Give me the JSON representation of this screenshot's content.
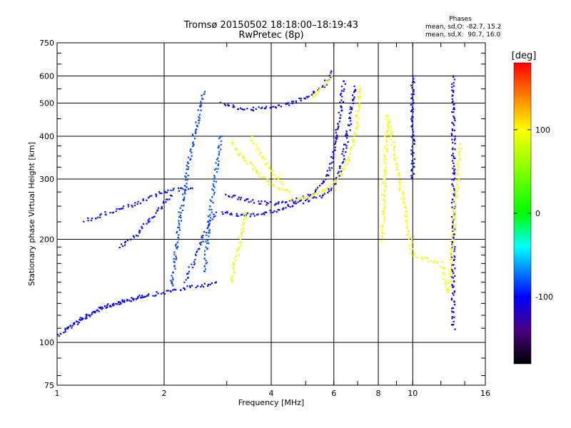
{
  "chart_data": {
    "type": "scatter",
    "title": "Tromsø 20150502 18:18:00–18:19:43",
    "subtitle": "RwPretec (8p)",
    "xlabel": "Frequency [MHz]",
    "ylabel": "Stationary phase Virtual Height [km]",
    "x_scale": "log",
    "y_scale": "log",
    "xlim": [
      1,
      16
    ],
    "ylim": [
      75,
      750
    ],
    "x_ticks": [
      1,
      2,
      4,
      6,
      8,
      10,
      16
    ],
    "x_tick_labels": [
      "1",
      "2",
      "4",
      "6",
      "8",
      "10",
      "16"
    ],
    "y_ticks": [
      75,
      100,
      200,
      300,
      400,
      500,
      600,
      750
    ],
    "y_tick_labels": [
      "75",
      "100",
      "200",
      "300",
      "400",
      "500",
      "600",
      "750"
    ],
    "grid": true,
    "colorbar": {
      "label": "[deg]",
      "range": [
        -180,
        180
      ],
      "ticks": [
        100,
        0,
        -100
      ],
      "tick_labels": [
        "100",
        "0",
        "-100"
      ],
      "colors": [
        "#000000",
        "#4a0080",
        "#0000ff",
        "#00ffff",
        "#00ff00",
        "#ffff00",
        "#ff8000",
        "#ff0000"
      ]
    },
    "phase_stats": {
      "title": "Phases",
      "o_mode": "mean, sd,O: -82.7, 15.2",
      "x_mode": "mean, sd,X:  90.7, 16.0"
    },
    "traces": [
      {
        "phase": -100,
        "points": [
          [
            1.0,
            105
          ],
          [
            1.1,
            112
          ],
          [
            1.2,
            118
          ],
          [
            1.3,
            124
          ],
          [
            1.4,
            128
          ],
          [
            1.55,
            132
          ],
          [
            1.7,
            136
          ],
          [
            1.85,
            138
          ],
          [
            2.0,
            140
          ],
          [
            2.2,
            143
          ],
          [
            2.5,
            146
          ],
          [
            2.8,
            150
          ]
        ]
      },
      {
        "phase": -105,
        "points": [
          [
            1.05,
            108
          ],
          [
            1.12,
            114
          ],
          [
            1.22,
            121
          ],
          [
            1.35,
            127
          ],
          [
            1.5,
            131
          ],
          [
            1.65,
            134
          ],
          [
            1.8,
            137
          ]
        ]
      },
      {
        "phase": -95,
        "points": [
          [
            1.2,
            228
          ],
          [
            1.3,
            232
          ],
          [
            1.4,
            240
          ],
          [
            1.55,
            248
          ],
          [
            1.7,
            256
          ],
          [
            1.8,
            262
          ],
          [
            1.9,
            270
          ],
          [
            2.0,
            275
          ],
          [
            2.2,
            280
          ],
          [
            2.4,
            282
          ]
        ]
      },
      {
        "phase": -98,
        "points": [
          [
            1.5,
            190
          ],
          [
            1.6,
            200
          ],
          [
            1.7,
            210
          ],
          [
            1.8,
            225
          ],
          [
            1.9,
            240
          ],
          [
            2.0,
            255
          ],
          [
            2.1,
            268
          ]
        ]
      },
      {
        "phase": -85,
        "points": [
          [
            2.1,
            145
          ],
          [
            2.15,
            180
          ],
          [
            2.2,
            220
          ],
          [
            2.25,
            260
          ],
          [
            2.3,
            300
          ],
          [
            2.35,
            340
          ],
          [
            2.4,
            380
          ],
          [
            2.45,
            420
          ],
          [
            2.5,
            460
          ],
          [
            2.55,
            500
          ],
          [
            2.6,
            540
          ]
        ]
      },
      {
        "phase": -80,
        "points": [
          [
            2.6,
            160
          ],
          [
            2.65,
            200
          ],
          [
            2.7,
            240
          ],
          [
            2.75,
            280
          ],
          [
            2.8,
            320
          ],
          [
            2.85,
            360
          ],
          [
            2.9,
            400
          ]
        ]
      },
      {
        "phase": -90,
        "points": [
          [
            2.3,
            150
          ],
          [
            2.4,
            170
          ],
          [
            2.5,
            190
          ],
          [
            2.6,
            210
          ],
          [
            2.7,
            225
          ],
          [
            2.8,
            240
          ]
        ]
      },
      {
        "phase": -100,
        "points": [
          [
            2.9,
            240
          ],
          [
            3.2,
            236
          ],
          [
            3.6,
            236
          ],
          [
            4.0,
            240
          ],
          [
            4.4,
            248
          ],
          [
            4.8,
            256
          ],
          [
            5.2,
            262
          ],
          [
            5.6,
            270
          ],
          [
            5.9,
            280
          ],
          [
            6.1,
            300
          ],
          [
            6.3,
            330
          ],
          [
            6.45,
            370
          ],
          [
            6.6,
            420
          ],
          [
            6.7,
            470
          ],
          [
            6.8,
            520
          ],
          [
            6.85,
            560
          ]
        ]
      },
      {
        "phase": -105,
        "points": [
          [
            3.0,
            270
          ],
          [
            3.3,
            262
          ],
          [
            3.7,
            256
          ],
          [
            4.1,
            254
          ],
          [
            4.6,
            258
          ],
          [
            5.0,
            266
          ],
          [
            5.4,
            280
          ],
          [
            5.7,
            300
          ],
          [
            5.9,
            330
          ],
          [
            6.0,
            370
          ],
          [
            6.1,
            410
          ],
          [
            6.2,
            450
          ],
          [
            6.3,
            500
          ],
          [
            6.35,
            540
          ],
          [
            6.4,
            580
          ]
        ]
      },
      {
        "phase": 95,
        "points": [
          [
            4.5,
            262
          ],
          [
            4.9,
            264
          ],
          [
            5.3,
            270
          ],
          [
            5.7,
            280
          ],
          [
            6.1,
            296
          ],
          [
            6.4,
            320
          ],
          [
            6.65,
            350
          ],
          [
            6.85,
            390
          ],
          [
            6.95,
            430
          ],
          [
            7.0,
            470
          ],
          [
            7.05,
            510
          ],
          [
            7.1,
            560
          ]
        ]
      },
      {
        "phase": 90,
        "points": [
          [
            3.1,
            380
          ],
          [
            3.3,
            350
          ],
          [
            3.5,
            330
          ],
          [
            3.7,
            310
          ],
          [
            3.9,
            296
          ],
          [
            4.1,
            286
          ],
          [
            4.3,
            280
          ],
          [
            4.5,
            276
          ]
        ]
      },
      {
        "phase": 100,
        "points": [
          [
            3.5,
            395
          ],
          [
            3.7,
            360
          ],
          [
            3.9,
            330
          ],
          [
            4.1,
            305
          ],
          [
            4.3,
            290
          ]
        ]
      },
      {
        "phase": 90,
        "points": [
          [
            3.1,
            150
          ],
          [
            3.15,
            165
          ],
          [
            3.2,
            180
          ],
          [
            3.25,
            195
          ],
          [
            3.3,
            210
          ],
          [
            3.35,
            225
          ],
          [
            3.4,
            240
          ]
        ]
      },
      {
        "phase": -100,
        "points": [
          [
            2.9,
            500
          ],
          [
            3.2,
            485
          ],
          [
            3.6,
            480
          ],
          [
            4.0,
            485
          ],
          [
            4.4,
            495
          ],
          [
            4.8,
            510
          ],
          [
            5.2,
            530
          ],
          [
            5.6,
            560
          ],
          [
            5.8,
            590
          ],
          [
            5.9,
            620
          ]
        ]
      },
      {
        "phase": 95,
        "points": [
          [
            5.2,
            520
          ],
          [
            5.4,
            540
          ],
          [
            5.6,
            560
          ],
          [
            5.8,
            580
          ],
          [
            5.9,
            600
          ]
        ]
      },
      {
        "phase": -100,
        "points": [
          [
            10.0,
            300
          ],
          [
            10.0,
            350
          ],
          [
            10.0,
            400
          ],
          [
            10.0,
            450
          ],
          [
            10.0,
            500
          ],
          [
            10.0,
            550
          ],
          [
            10.0,
            600
          ]
        ]
      },
      {
        "phase": -110,
        "points": [
          [
            13.0,
            110
          ],
          [
            13.0,
            250
          ],
          [
            13.0,
            300
          ],
          [
            13.0,
            350
          ],
          [
            13.0,
            400
          ],
          [
            13.0,
            450
          ],
          [
            13.0,
            500
          ],
          [
            13.0,
            550
          ],
          [
            13.0,
            600
          ]
        ]
      },
      {
        "phase": 95,
        "points": [
          [
            8.2,
            200
          ],
          [
            8.3,
            300
          ],
          [
            8.5,
            460
          ],
          [
            10.0,
            180
          ],
          [
            12.0,
            170
          ],
          [
            12.6,
            140
          ],
          [
            13.6,
            380
          ]
        ]
      }
    ]
  }
}
